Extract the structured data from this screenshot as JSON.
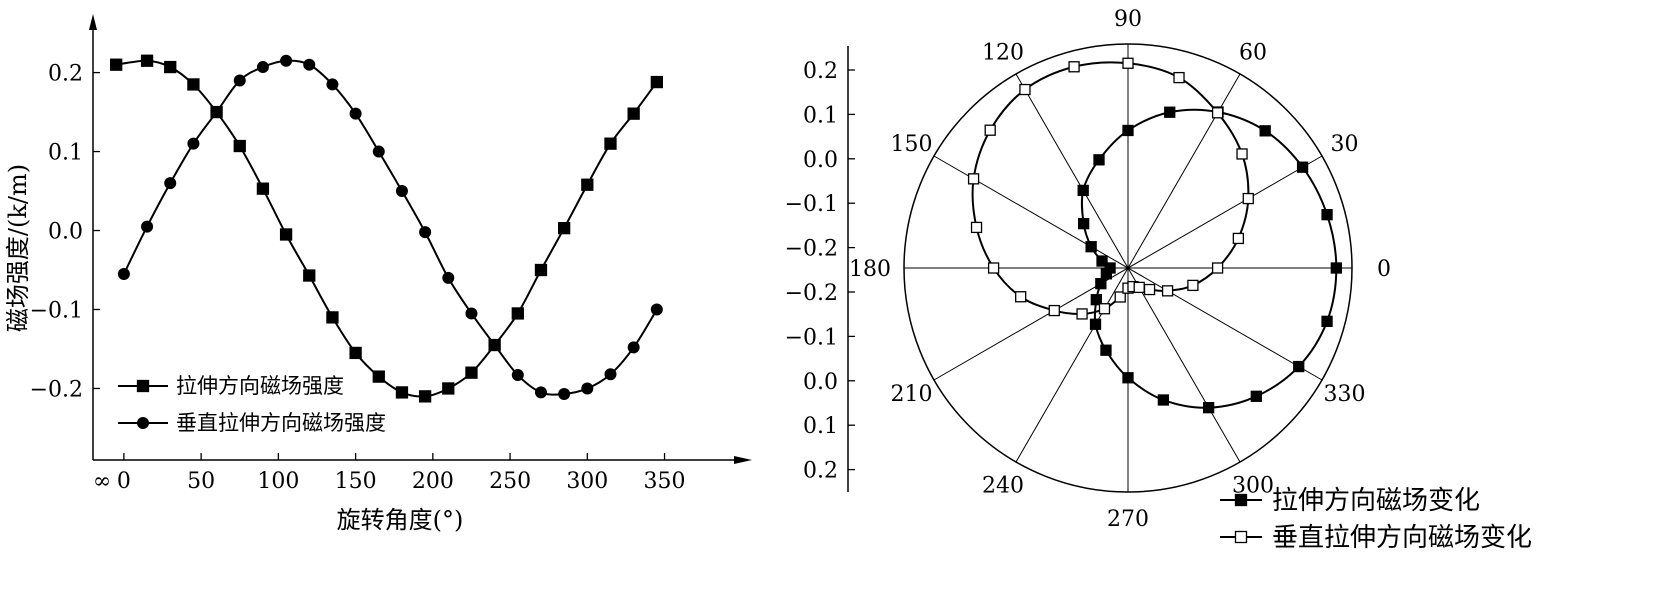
{
  "chart_data": [
    {
      "type": "line",
      "xlabel": "旋转角度(°)",
      "ylabel": "磁场强度/(k/m)",
      "x_start_label": "∞",
      "xlim": [
        -20,
        360
      ],
      "ylim": [
        -0.245,
        0.24
      ],
      "x_ticks": [
        0,
        50,
        100,
        150,
        200,
        250,
        300,
        350
      ],
      "y_ticks": [
        0.2,
        0.1,
        0.0,
        -0.1,
        -0.2
      ],
      "y_tick_labels": [
        "0.2",
        "0.1",
        "0.0",
        "−0.1",
        "−0.2"
      ],
      "x_tick_labels": [
        "0",
        "50",
        "100",
        "150",
        "200",
        "250",
        "300",
        "350"
      ],
      "legend_position": "lower-left",
      "series": [
        {
          "name": "拉伸方向磁场强度",
          "marker": "filled-square",
          "x": [
            -5,
            15,
            30,
            45,
            60,
            75,
            90,
            105,
            120,
            135,
            150,
            165,
            180,
            195,
            210,
            225,
            240,
            255,
            270,
            285,
            300,
            315,
            330,
            345
          ],
          "values": [
            0.21,
            0.215,
            0.207,
            0.185,
            0.15,
            0.107,
            0.053,
            -0.005,
            -0.057,
            -0.11,
            -0.155,
            -0.185,
            -0.205,
            -0.21,
            -0.2,
            -0.18,
            -0.145,
            -0.105,
            -0.05,
            0.003,
            0.058,
            0.11,
            0.148,
            0.188
          ]
        },
        {
          "name": "垂直拉伸方向磁场强度",
          "marker": "filled-circle",
          "x": [
            0,
            15,
            30,
            45,
            60,
            75,
            90,
            105,
            120,
            135,
            150,
            165,
            180,
            195,
            210,
            225,
            240,
            255,
            270,
            285,
            300,
            315,
            330,
            345
          ],
          "values": [
            -0.055,
            0.005,
            0.06,
            0.11,
            0.15,
            0.19,
            0.207,
            0.215,
            0.21,
            0.185,
            0.148,
            0.1,
            0.05,
            -0.002,
            -0.06,
            -0.105,
            -0.145,
            -0.183,
            -0.205,
            -0.207,
            -0.2,
            -0.182,
            -0.148,
            -0.1
          ]
        }
      ]
    },
    {
      "type": "polar",
      "angle_labels": [
        "0",
        "30",
        "60",
        "90",
        "120",
        "150",
        "180",
        "210",
        "240",
        "270",
        "300",
        "330"
      ],
      "radial_tick_labels": [
        "0.2",
        "0.1",
        "0.0",
        "−0.1",
        "−0.2",
        "−0.2",
        "−0.1",
        "0.0",
        "0.1",
        "0.2"
      ],
      "radial_range": [
        -0.25,
        0.25
      ],
      "legend_position": "bottom-right",
      "series": [
        {
          "name": "拉伸方向磁场变化",
          "marker": "filled-square",
          "angle_deg": [
            0,
            15,
            30,
            45,
            60,
            75,
            90,
            105,
            120,
            135,
            150,
            165,
            180,
            195,
            210,
            225,
            240,
            255,
            270,
            285,
            300,
            315,
            330,
            345
          ],
          "values": [
            0.215,
            0.21,
            0.2,
            0.183,
            0.152,
            0.11,
            0.057,
            0.0,
            -0.05,
            -0.11,
            -0.155,
            -0.19,
            -0.21,
            -0.2,
            -0.18,
            -0.15,
            -0.105,
            -0.06,
            -0.005,
            0.055,
            0.11,
            0.155,
            0.19,
            0.21
          ]
        },
        {
          "name": "垂直拉伸方向磁场变化",
          "marker": "open-square",
          "angle_deg": [
            0,
            15,
            30,
            45,
            60,
            75,
            90,
            105,
            120,
            135,
            150,
            165,
            180,
            195,
            210,
            225,
            240,
            255,
            270,
            285,
            300,
            315,
            330,
            345
          ],
          "values": [
            -0.05,
            0.005,
            0.06,
            0.11,
            0.15,
            0.19,
            0.207,
            0.215,
            0.21,
            0.185,
            0.148,
            0.1,
            0.05,
            -0.002,
            -0.06,
            -0.105,
            -0.145,
            -0.183,
            -0.205,
            -0.207,
            -0.2,
            -0.182,
            -0.148,
            -0.1
          ]
        }
      ]
    }
  ]
}
